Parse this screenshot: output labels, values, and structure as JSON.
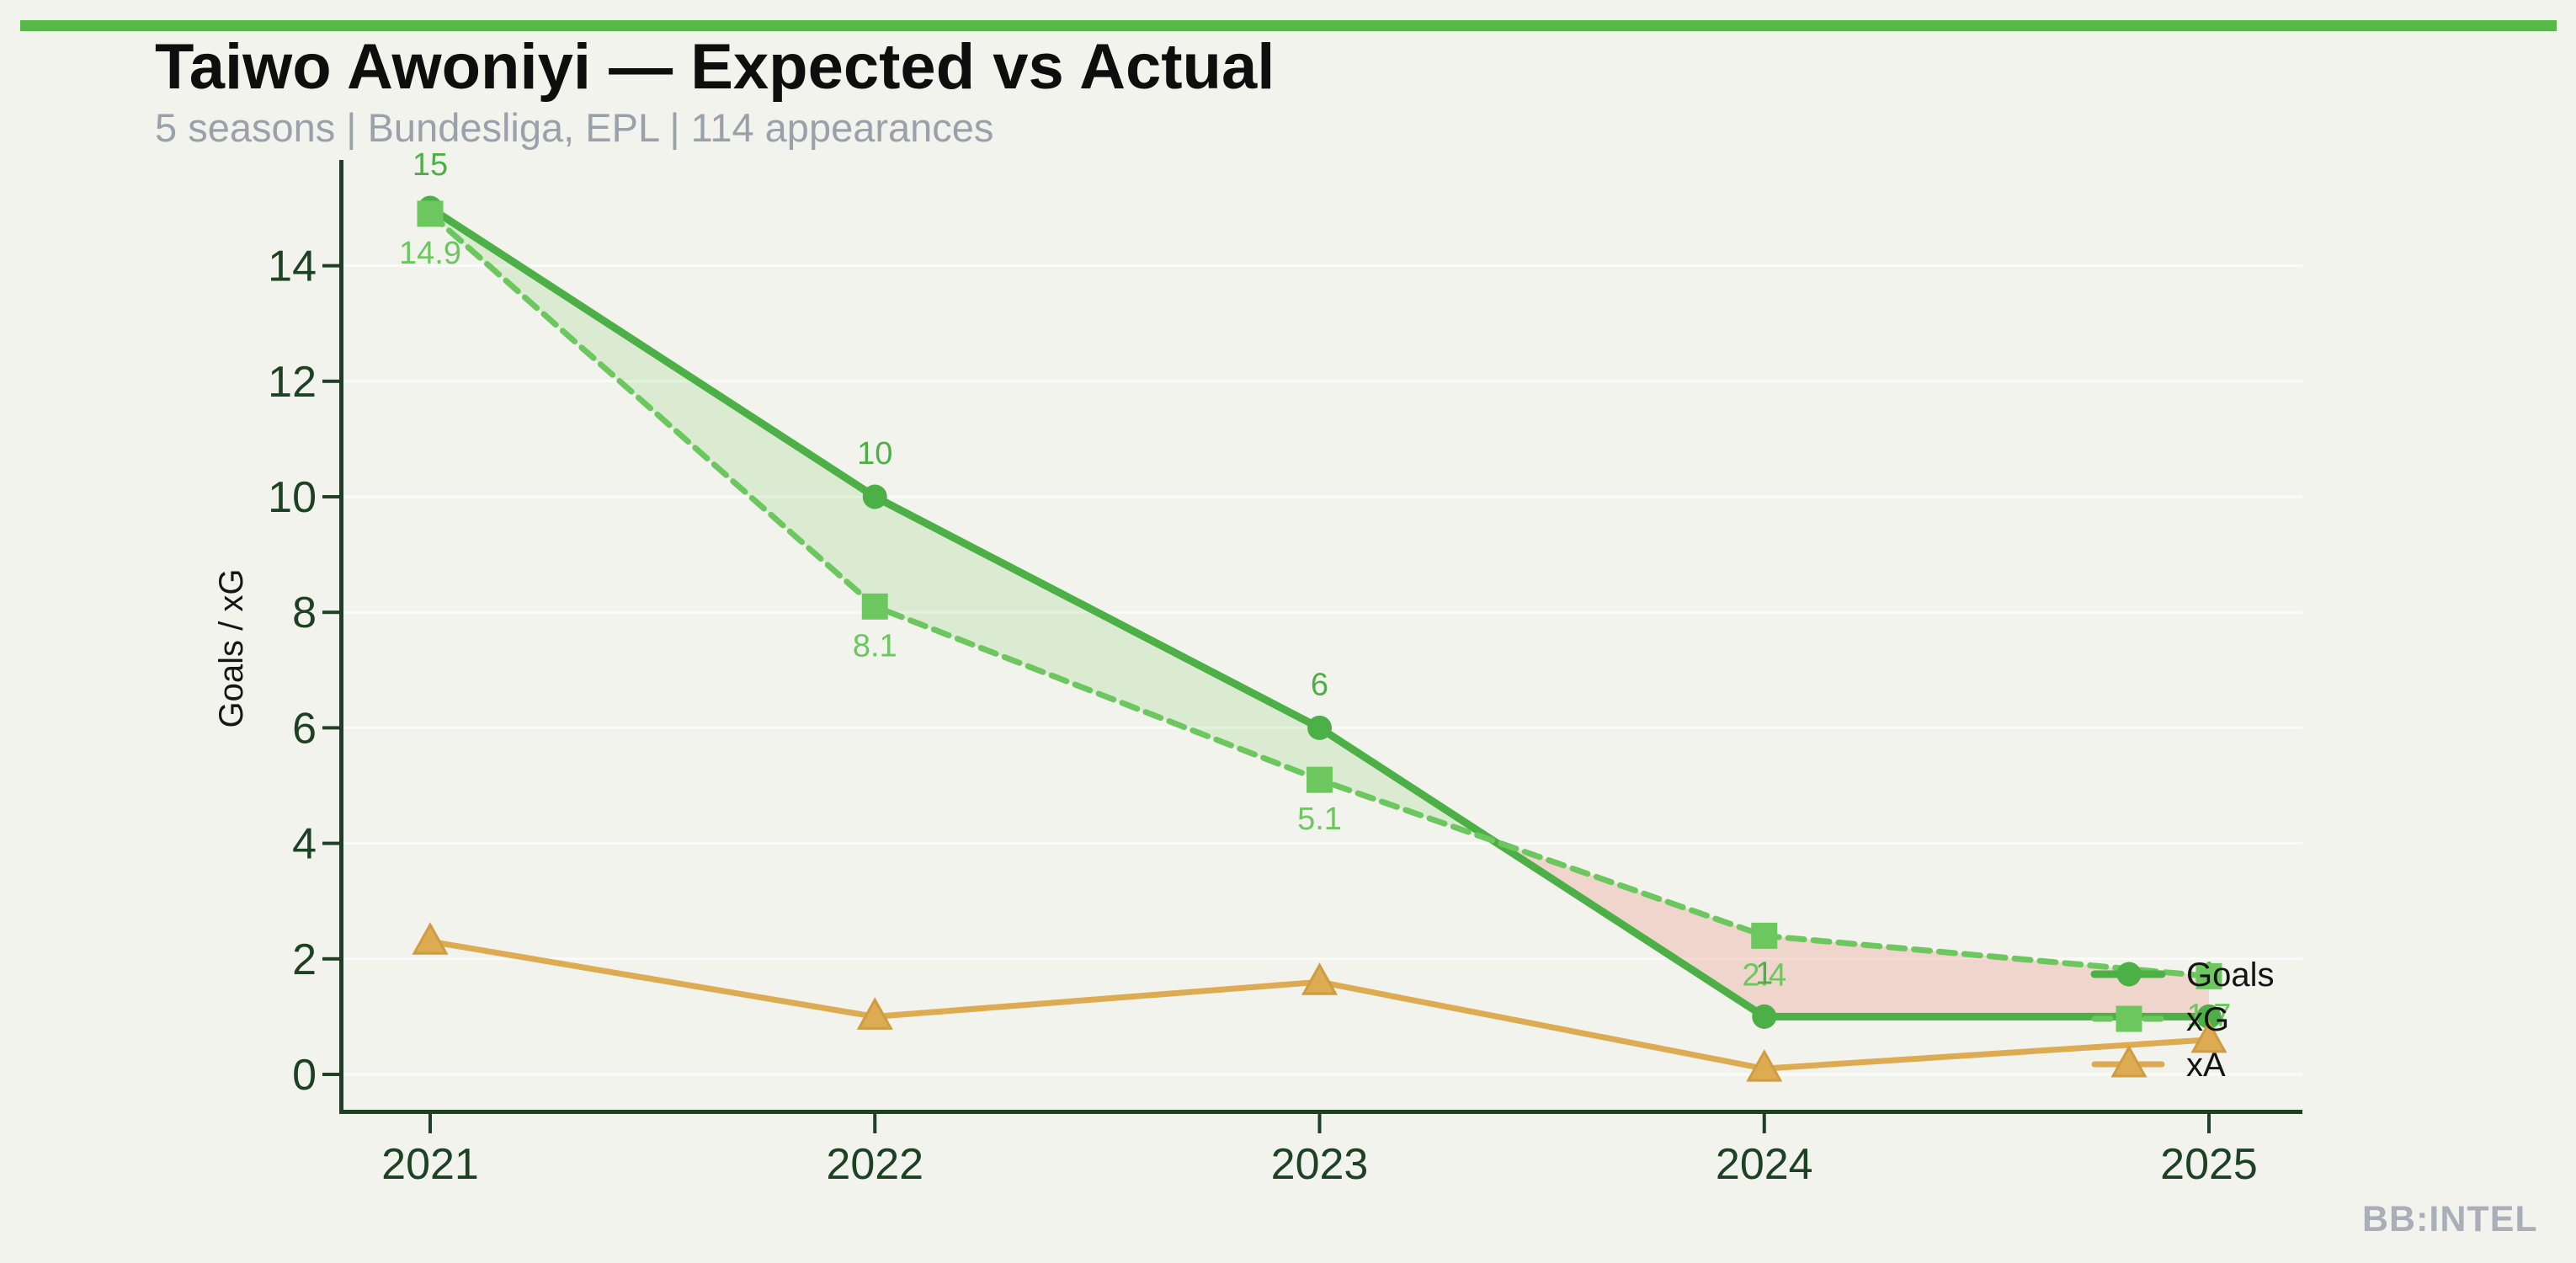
{
  "page": {
    "background_color": "#f2f3ec",
    "accent_bar_color": "#57b84a"
  },
  "header": {
    "title": "Taiwo Awoniyi — Expected vs Actual",
    "subtitle": "5 seasons | Bundesliga, EPL | 114 appearances"
  },
  "watermark": {
    "text": "BB:INTEL"
  },
  "chart_data": {
    "type": "line",
    "x": [
      "2021",
      "2022",
      "2023",
      "2024",
      "2025"
    ],
    "series": [
      {
        "name": "Goals",
        "values": [
          15,
          10,
          6,
          1,
          1
        ],
        "labels": [
          "15",
          "10",
          "6",
          "1",
          "1"
        ],
        "color": "#4cb046",
        "line_style": "solid",
        "marker": "circle",
        "label_side": "above"
      },
      {
        "name": "xG",
        "values": [
          14.9,
          8.1,
          5.1,
          2.4,
          1.7
        ],
        "labels": [
          "14.9",
          "8.1",
          "5.1",
          "2.4",
          "1.7"
        ],
        "color": "#6cc75e",
        "line_style": "dashed",
        "marker": "square",
        "label_side": "below"
      },
      {
        "name": "xA",
        "values": [
          2.3,
          1.0,
          1.6,
          0.1,
          0.6
        ],
        "labels": [
          "",
          "",
          "",
          "",
          ""
        ],
        "color": "#dcab52",
        "line_style": "solid",
        "marker": "triangle-up",
        "label_side": "none"
      }
    ],
    "ylabel": "Goals / xG",
    "yticks": [
      0,
      2,
      4,
      6,
      8,
      10,
      12,
      14
    ],
    "ylim": [
      -0.65,
      15.8
    ],
    "grid": "horizontal-faint",
    "legend": {
      "entries": [
        "Goals",
        "xG",
        "xA"
      ],
      "position": "inside-right"
    },
    "fill_between": {
      "between": [
        "Goals",
        "xG"
      ],
      "overperform_color": "rgba(118,198,96,0.18)",
      "underperform_color": "rgba(233,126,112,0.26)"
    },
    "axis_colors": {
      "spine": "#1e4024",
      "tick_label": "#1d4123",
      "ylabel": "#151515",
      "legend_text": "#141414"
    }
  }
}
